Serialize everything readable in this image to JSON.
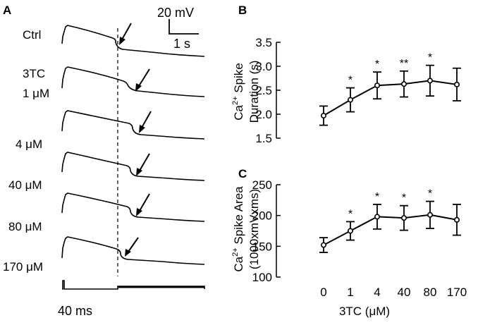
{
  "figure": {
    "panel_a": {
      "letter": "A",
      "traces": [
        {
          "label": "Ctrl"
        },
        {
          "label": "3TC",
          "label2": "1 μM"
        },
        {
          "label": "4 μM"
        },
        {
          "label": "40 μM"
        },
        {
          "label": "80 μM"
        },
        {
          "label": "170 μM"
        }
      ],
      "scale_bar": {
        "voltage": "20 mV",
        "time": "1 s"
      },
      "stimulus_label": "40 ms"
    }
  },
  "chart_data": [
    {
      "panel": "B",
      "type": "line",
      "x_categories": [
        "0",
        "1",
        "4",
        "40",
        "80",
        "170"
      ],
      "values": [
        1.97,
        2.3,
        2.6,
        2.63,
        2.7,
        2.62
      ],
      "errors": [
        0.2,
        0.25,
        0.28,
        0.27,
        0.32,
        0.34
      ],
      "significance": [
        "",
        "*",
        "*",
        "**",
        "*",
        ""
      ],
      "ylim": [
        1.5,
        3.5
      ],
      "yticks": [
        "1.5",
        "2.0",
        "2.5",
        "3.0",
        "3.5"
      ],
      "ylabel_parts": {
        "ca": "Ca",
        "sup": "2+",
        "rest": " Spike",
        "line2": "Duration (s)"
      },
      "xlabel": ""
    },
    {
      "panel": "C",
      "type": "line",
      "x_categories": [
        "0",
        "1",
        "4",
        "40",
        "80",
        "170"
      ],
      "values": [
        152,
        175,
        198,
        196,
        201,
        193
      ],
      "errors": [
        12,
        15,
        20,
        20,
        22,
        25
      ],
      "significance": [
        "",
        "*",
        "*",
        "*",
        "*",
        ""
      ],
      "ylim": [
        100,
        250
      ],
      "yticks": [
        "100",
        "150",
        "200",
        "250"
      ],
      "ylabel_parts": {
        "ca": "Ca",
        "sup": "2+",
        "rest": " Spike Area",
        "line2": "(1000xmVxms)"
      },
      "xlabel": "3TC (μM)"
    }
  ]
}
